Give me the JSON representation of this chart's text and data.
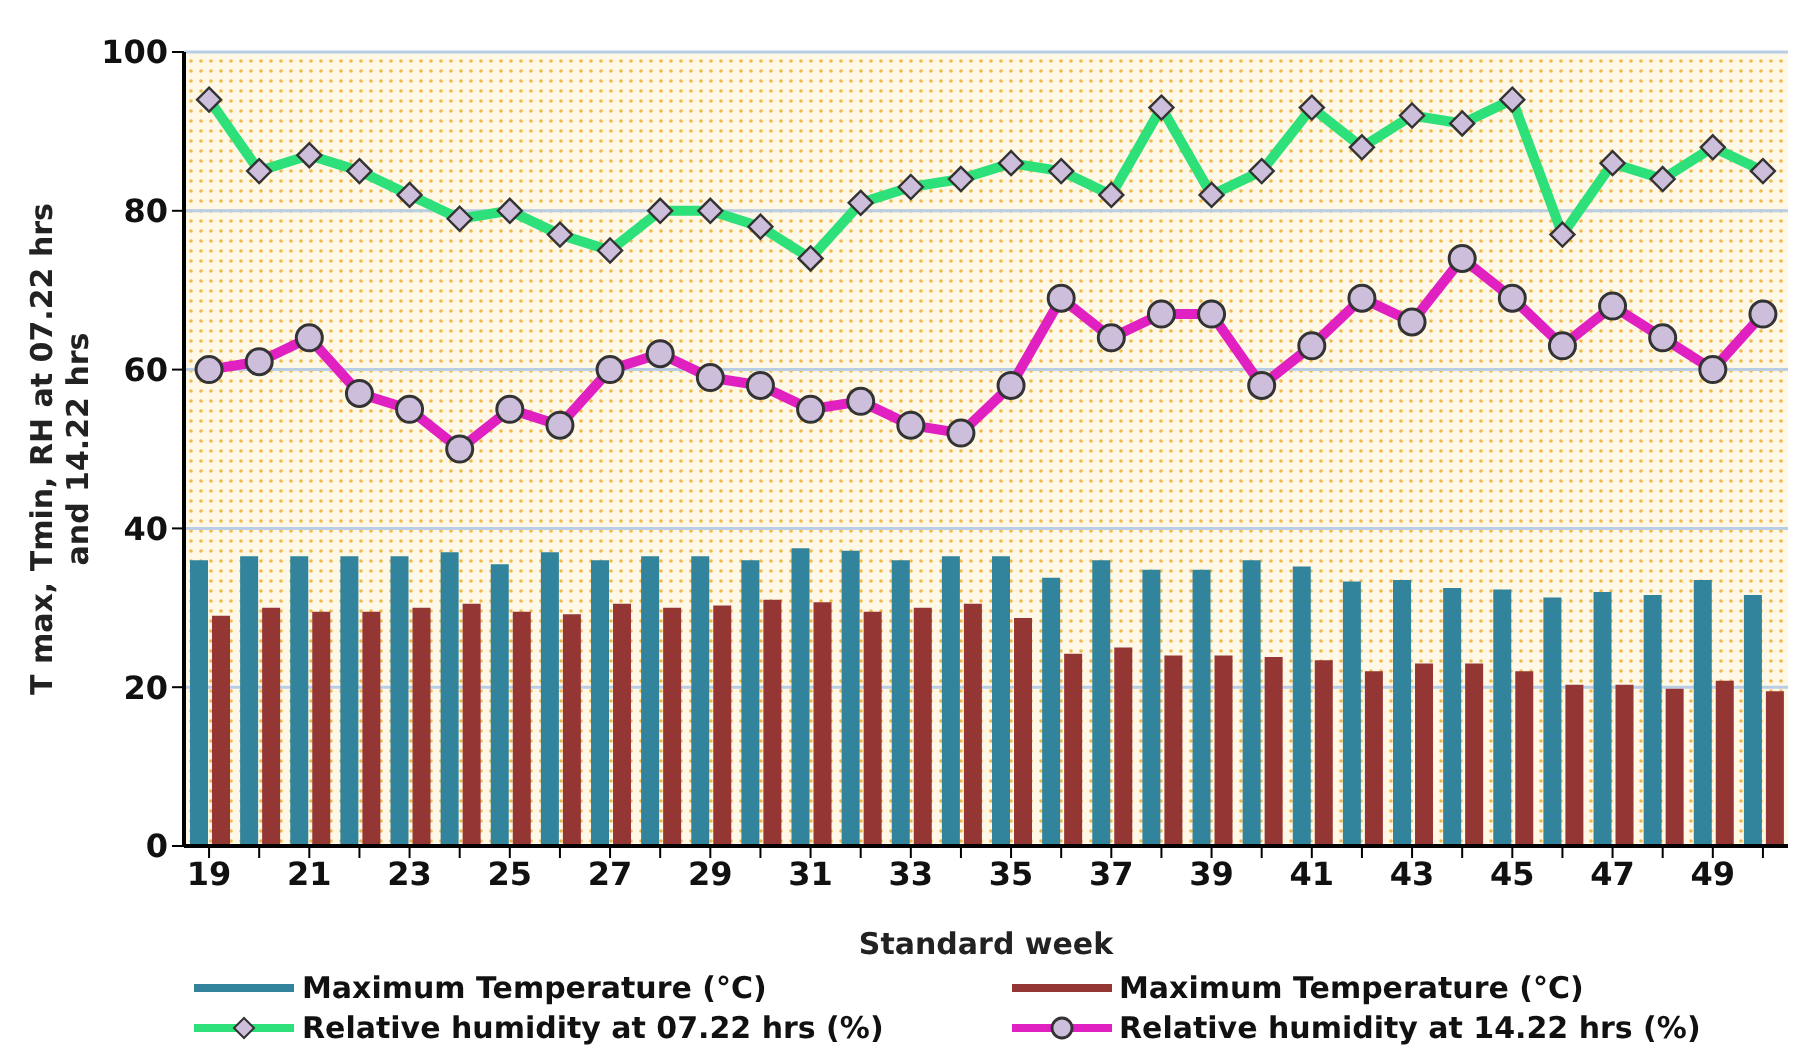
{
  "chart_data": {
    "type": "bar",
    "xlabel": "Standard week",
    "ylabel": "T max, Tmin, RH at 07.22 hrs and 14.22 hrs",
    "categories": [
      "19",
      null,
      "21",
      null,
      "23",
      null,
      "25",
      null,
      "27",
      null,
      "29",
      null,
      "31",
      null,
      "33",
      null,
      "35",
      null,
      "37",
      null,
      "39",
      null,
      "41",
      null,
      "43",
      null,
      "45",
      null,
      "47",
      null,
      "49",
      null
    ],
    "series": [
      {
        "name": "Maximum Temperature (°C)",
        "color": "#31849b",
        "values": [
          36,
          36.5,
          36.5,
          36.5,
          36.5,
          37,
          35.5,
          37,
          36,
          36.5,
          36.5,
          36,
          37.5,
          37.2,
          36,
          36.5,
          36.5,
          33.8,
          36,
          34.8,
          34.8,
          36,
          35.2,
          33.3,
          33.5,
          32.5,
          32.3,
          31.3,
          32,
          31.6,
          33.5,
          31.6
        ]
      },
      {
        "name": "Maximum Temperature (°C)",
        "color": "#943634",
        "values": [
          29,
          30,
          29.5,
          29.5,
          30,
          30.5,
          29.5,
          29.2,
          30.5,
          30,
          30.3,
          31,
          30.7,
          29.5,
          30,
          30.5,
          28.7,
          24.2,
          25,
          24,
          24,
          23.8,
          23.4,
          22,
          23,
          23,
          22,
          20.3,
          20.3,
          19.8,
          20.8,
          19.5
        ]
      },
      {
        "name": "Relative humidity at 07.22 hrs (%)",
        "type": "line",
        "marker": "diamond",
        "color": "#2ee07a",
        "values": [
          94,
          85,
          87,
          85,
          82,
          79,
          80,
          77,
          75,
          80,
          80,
          78,
          74,
          81,
          83,
          84,
          86,
          85,
          82,
          93,
          82,
          85,
          93,
          88,
          92,
          91,
          94,
          77,
          86,
          84,
          88,
          85
        ]
      },
      {
        "name": "Relative humidity at 14.22 hrs (%)",
        "type": "line",
        "marker": "circle",
        "color": "#e020c0",
        "values": [
          60,
          61,
          64,
          57,
          55,
          50,
          55,
          53,
          60,
          62,
          59,
          58,
          55,
          56,
          53,
          52,
          58,
          69,
          64,
          67,
          67,
          58,
          63,
          69,
          66,
          74,
          69,
          63,
          68,
          64,
          60,
          67
        ]
      }
    ],
    "ylim": [
      0,
      100
    ],
    "yticks": [
      0,
      20,
      40,
      60,
      80,
      100
    ],
    "grid": "y",
    "legend": "bottom"
  }
}
